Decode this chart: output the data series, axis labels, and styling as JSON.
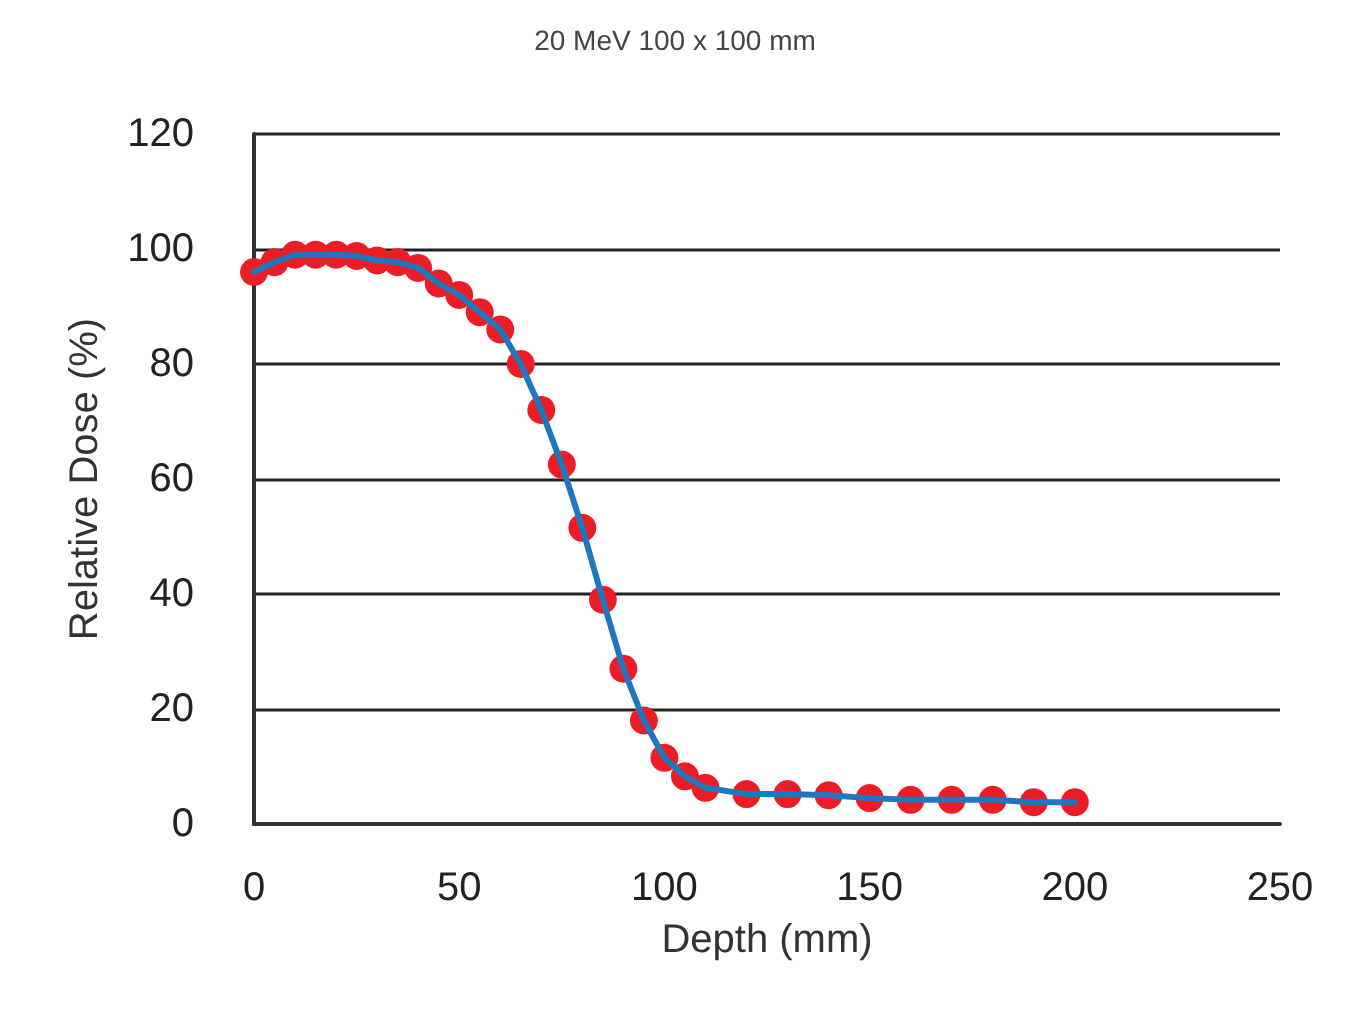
{
  "chart_data": {
    "type": "line",
    "title": "20 MeV 100 x 100 mm",
    "xlabel": "Depth (mm)",
    "ylabel": "Relative Dose (%)",
    "x": [
      0,
      5,
      10,
      15,
      20,
      25,
      30,
      35,
      40,
      45,
      50,
      55,
      60,
      65,
      70,
      75,
      80,
      85,
      90,
      95,
      100,
      105,
      110,
      120,
      130,
      140,
      150,
      160,
      170,
      180,
      190,
      200
    ],
    "series": [
      {
        "color": "#1f77c0",
        "marker": "none",
        "values": [
          96,
          97.7,
          99,
          99,
          99,
          98.8,
          98,
          97.7,
          96.7,
          94,
          92,
          89,
          86,
          80,
          72,
          62.5,
          51.5,
          39,
          27,
          18,
          11.5,
          8.3,
          6.3,
          5.2,
          5.2,
          5,
          4.5,
          4.2,
          4.2,
          4.2,
          3.8,
          3.8
        ]
      },
      {
        "type": "scatter",
        "color": "#ee1c25",
        "marker": "circle",
        "values": [
          96,
          97.7,
          99,
          99,
          99,
          98.8,
          98,
          97.7,
          96.7,
          94,
          92,
          89,
          86,
          80,
          72,
          62.5,
          51.5,
          39,
          27,
          18,
          11.5,
          8.3,
          6.3,
          5.2,
          5.2,
          5,
          4.5,
          4.2,
          4.2,
          4.2,
          3.8,
          3.8
        ]
      }
    ],
    "xlim": [
      0,
      250
    ],
    "xticks": [
      0,
      50,
      100,
      150,
      200,
      250
    ],
    "ylim": [
      0,
      120
    ],
    "yticks": [
      0,
      20,
      40,
      60,
      80,
      100,
      120
    ],
    "grid": "y",
    "line_style": "solid"
  }
}
